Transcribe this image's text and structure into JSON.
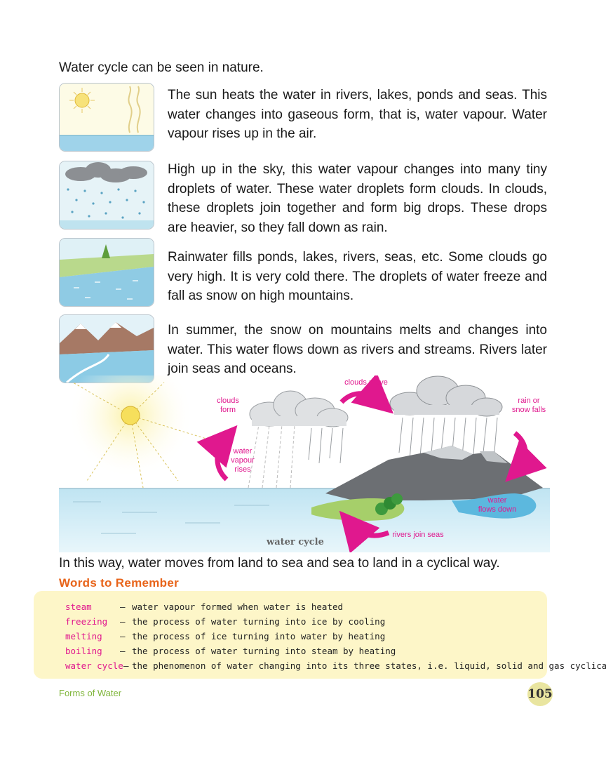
{
  "intro": "Water cycle can be seen in nature.",
  "steps": [
    {
      "icon": "sun-over-water-illustration",
      "text": "The sun heats the water in rivers, lakes, ponds and seas. This water changes into gaseous form, that is, water vapour. Water vapour rises up in the air."
    },
    {
      "icon": "rain-cloud-illustration",
      "text": "High up in the sky, this water vapour changes into many tiny droplets of water. These water droplets form clouds. In clouds, these droplets join together and form big drops. These drops are heavier, so they fall down as rain."
    },
    {
      "icon": "rainwater-river-illustration",
      "text": "Rainwater fills ponds, lakes, rivers, seas, etc. Some clouds go very high. It is very cold there. The droplets of water freeze and fall as snow on high mountains."
    },
    {
      "icon": "snow-mountain-river-illustration",
      "text": "In summer, the snow on mountains melts and changes into water. This water flows down as rivers and streams. Rivers later join seas and oceans."
    }
  ],
  "diagram": {
    "caption": "water cycle",
    "labels": {
      "clouds_form": "clouds\nform",
      "clouds_move": "clouds move",
      "rain_or_snow": "rain or\nsnow falls",
      "vapour_rises": "water\nvapour\nrises",
      "flows_down": "water\nflows down",
      "join_seas": "rivers join seas"
    },
    "arrow_color": "#e0188e"
  },
  "outro": "In this way, water moves from land to sea and sea to land in a cyclical way.",
  "words_to_remember": {
    "title": "Words to Remember",
    "items": [
      {
        "term": "steam",
        "dash": "–",
        "definition": "water vapour formed when water is heated"
      },
      {
        "term": "freezing",
        "dash": "–",
        "definition": "the process of water turning into ice by cooling"
      },
      {
        "term": "melting",
        "dash": "–",
        "definition": "the process of ice turning into water by heating"
      },
      {
        "term": "boiling",
        "dash": "–",
        "definition": "the process of water turning into steam by heating"
      },
      {
        "term": "water cycle",
        "dash": "–",
        "definition": "the phenomenon of water changing into its three states, i.e. liquid, solid and gas cyclically"
      }
    ]
  },
  "footer": {
    "chapter": "Forms of Water",
    "page": "105"
  }
}
